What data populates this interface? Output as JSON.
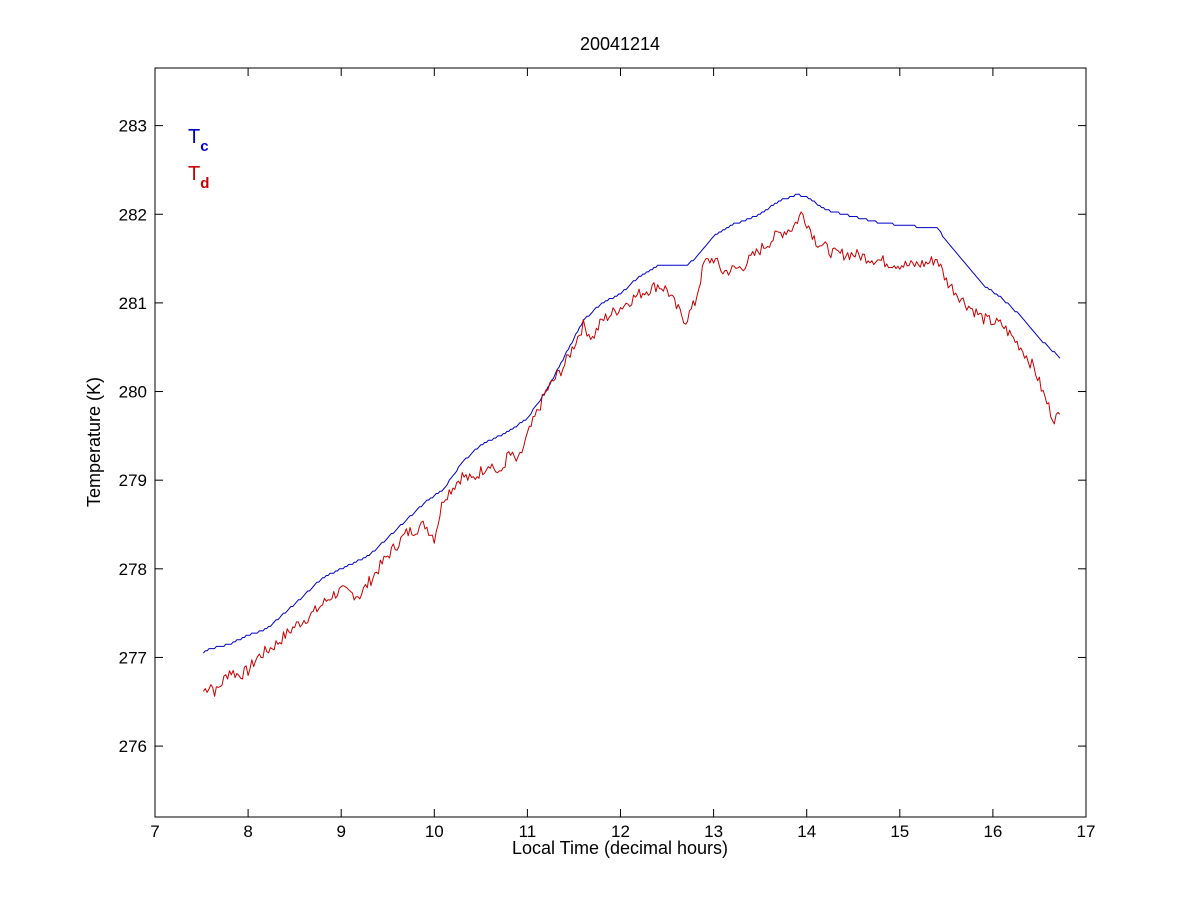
{
  "chart_data": {
    "type": "line",
    "title": "20041214",
    "xlabel": "Local Time (decimal hours)",
    "ylabel": "Temperature (K)",
    "xlim": [
      7,
      17
    ],
    "ylim": [
      275.2,
      283.65
    ],
    "xticks": [
      7,
      8,
      9,
      10,
      11,
      12,
      13,
      14,
      15,
      16,
      17
    ],
    "yticks": [
      276,
      277,
      278,
      279,
      280,
      281,
      282,
      283
    ],
    "grid": false,
    "legend_position": "top-left",
    "series": [
      {
        "label_main": "T",
        "label_sub": "c",
        "color": "#0000cc",
        "noise": 0,
        "x": [
          7.52,
          7.6,
          7.8,
          8.0,
          8.2,
          8.5,
          8.8,
          9.0,
          9.3,
          9.6,
          9.9,
          10.1,
          10.3,
          10.5,
          10.8,
          11.0,
          11.2,
          11.4,
          11.6,
          11.8,
          12.0,
          12.2,
          12.4,
          12.7,
          12.8,
          13.0,
          13.2,
          13.5,
          13.7,
          13.9,
          14.0,
          14.2,
          14.4,
          14.6,
          14.8,
          15.0,
          15.2,
          15.4,
          15.5,
          15.7,
          15.9,
          16.1,
          16.3,
          16.5,
          16.72
        ],
        "y": [
          277.05,
          277.1,
          277.15,
          277.25,
          277.32,
          277.6,
          277.9,
          278.0,
          278.15,
          278.45,
          278.75,
          278.9,
          279.2,
          279.4,
          279.55,
          279.7,
          280.0,
          280.4,
          280.8,
          281.0,
          281.1,
          281.3,
          281.42,
          281.42,
          281.5,
          281.75,
          281.88,
          282.0,
          282.15,
          282.22,
          282.2,
          282.05,
          282.0,
          281.95,
          281.9,
          281.88,
          281.86,
          281.85,
          281.7,
          281.45,
          281.2,
          281.05,
          280.85,
          280.6,
          280.38
        ]
      },
      {
        "label_main": "T",
        "label_sub": "d",
        "color": "#cc0000",
        "noise": 0.07,
        "x": [
          7.52,
          7.6,
          7.65,
          7.8,
          7.9,
          8.0,
          8.1,
          8.3,
          8.5,
          8.7,
          8.9,
          9.0,
          9.2,
          9.3,
          9.5,
          9.7,
          9.9,
          10.0,
          10.1,
          10.3,
          10.4,
          10.6,
          10.7,
          10.8,
          10.9,
          11.0,
          11.2,
          11.4,
          11.6,
          11.7,
          11.8,
          12.0,
          12.2,
          12.4,
          12.5,
          12.6,
          12.7,
          12.8,
          12.9,
          13.0,
          13.1,
          13.3,
          13.5,
          13.7,
          13.85,
          13.95,
          14.1,
          14.3,
          14.5,
          14.7,
          14.9,
          15.1,
          15.3,
          15.4,
          15.5,
          15.7,
          15.9,
          16.1,
          16.3,
          16.45,
          16.55,
          16.65,
          16.72
        ],
        "y": [
          276.62,
          276.7,
          276.6,
          276.85,
          276.8,
          276.85,
          277.0,
          277.15,
          277.35,
          277.5,
          277.7,
          277.75,
          277.7,
          277.85,
          278.15,
          278.4,
          278.5,
          278.35,
          278.8,
          279.05,
          279.0,
          279.2,
          279.05,
          279.3,
          279.2,
          279.5,
          280.0,
          280.3,
          280.75,
          280.6,
          280.8,
          280.95,
          281.1,
          281.2,
          281.15,
          280.95,
          280.8,
          281.0,
          281.45,
          281.5,
          281.35,
          281.4,
          281.6,
          281.78,
          281.85,
          282.02,
          281.7,
          281.55,
          281.55,
          281.5,
          281.45,
          281.42,
          281.45,
          281.5,
          281.25,
          281.0,
          280.82,
          280.75,
          280.5,
          280.25,
          279.95,
          279.7,
          279.72
        ]
      }
    ]
  }
}
